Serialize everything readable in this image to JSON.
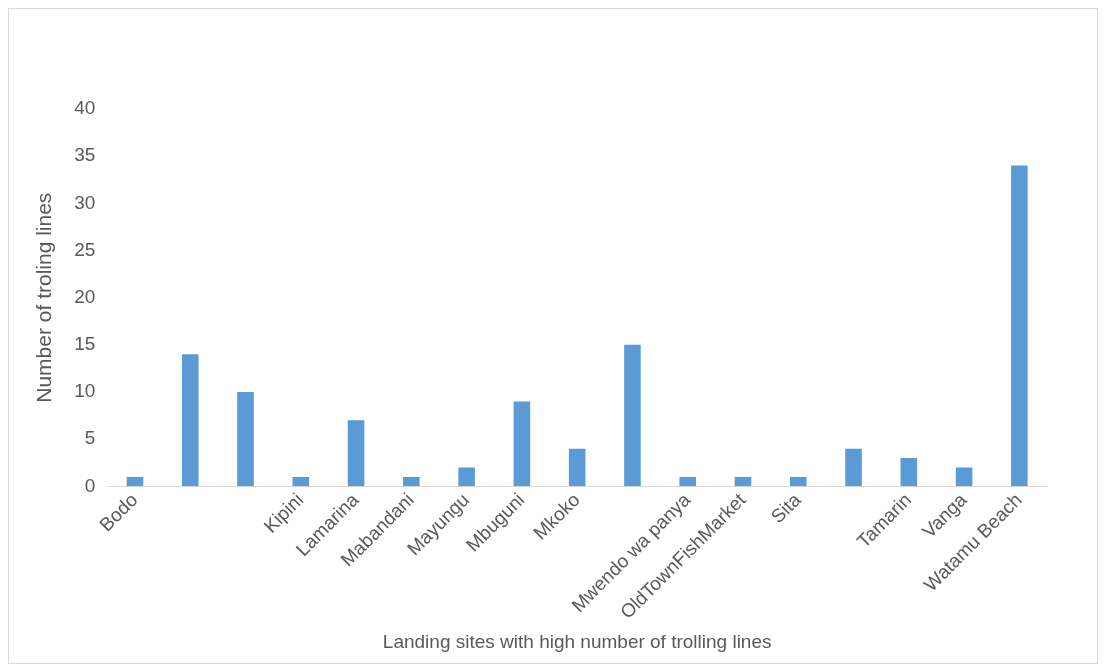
{
  "chart_data": {
    "type": "bar",
    "xlabel": "Landing sites with high number of trolling lines",
    "ylabel": "Number of troling lines",
    "categories": [
      "Bodo",
      null,
      null,
      "Kipini",
      "Lamarina",
      "Mabandani",
      "Mayungu",
      "Mbuguni",
      "Mkoko",
      null,
      "Mwendo wa panya",
      "OldTownFishMarket",
      "Sita",
      null,
      "Tamarin",
      "Vanga",
      "Watamu Beach"
    ],
    "values": [
      1,
      14,
      10,
      1,
      7,
      1,
      2,
      9,
      4,
      15,
      1,
      1,
      1,
      4,
      3,
      2,
      34
    ],
    "color": "#5b9bd5",
    "ylim": [
      0,
      40
    ],
    "yticks": [
      0,
      5,
      10,
      15,
      20,
      25,
      30,
      35,
      40
    ],
    "grid": false,
    "legend": false
  }
}
